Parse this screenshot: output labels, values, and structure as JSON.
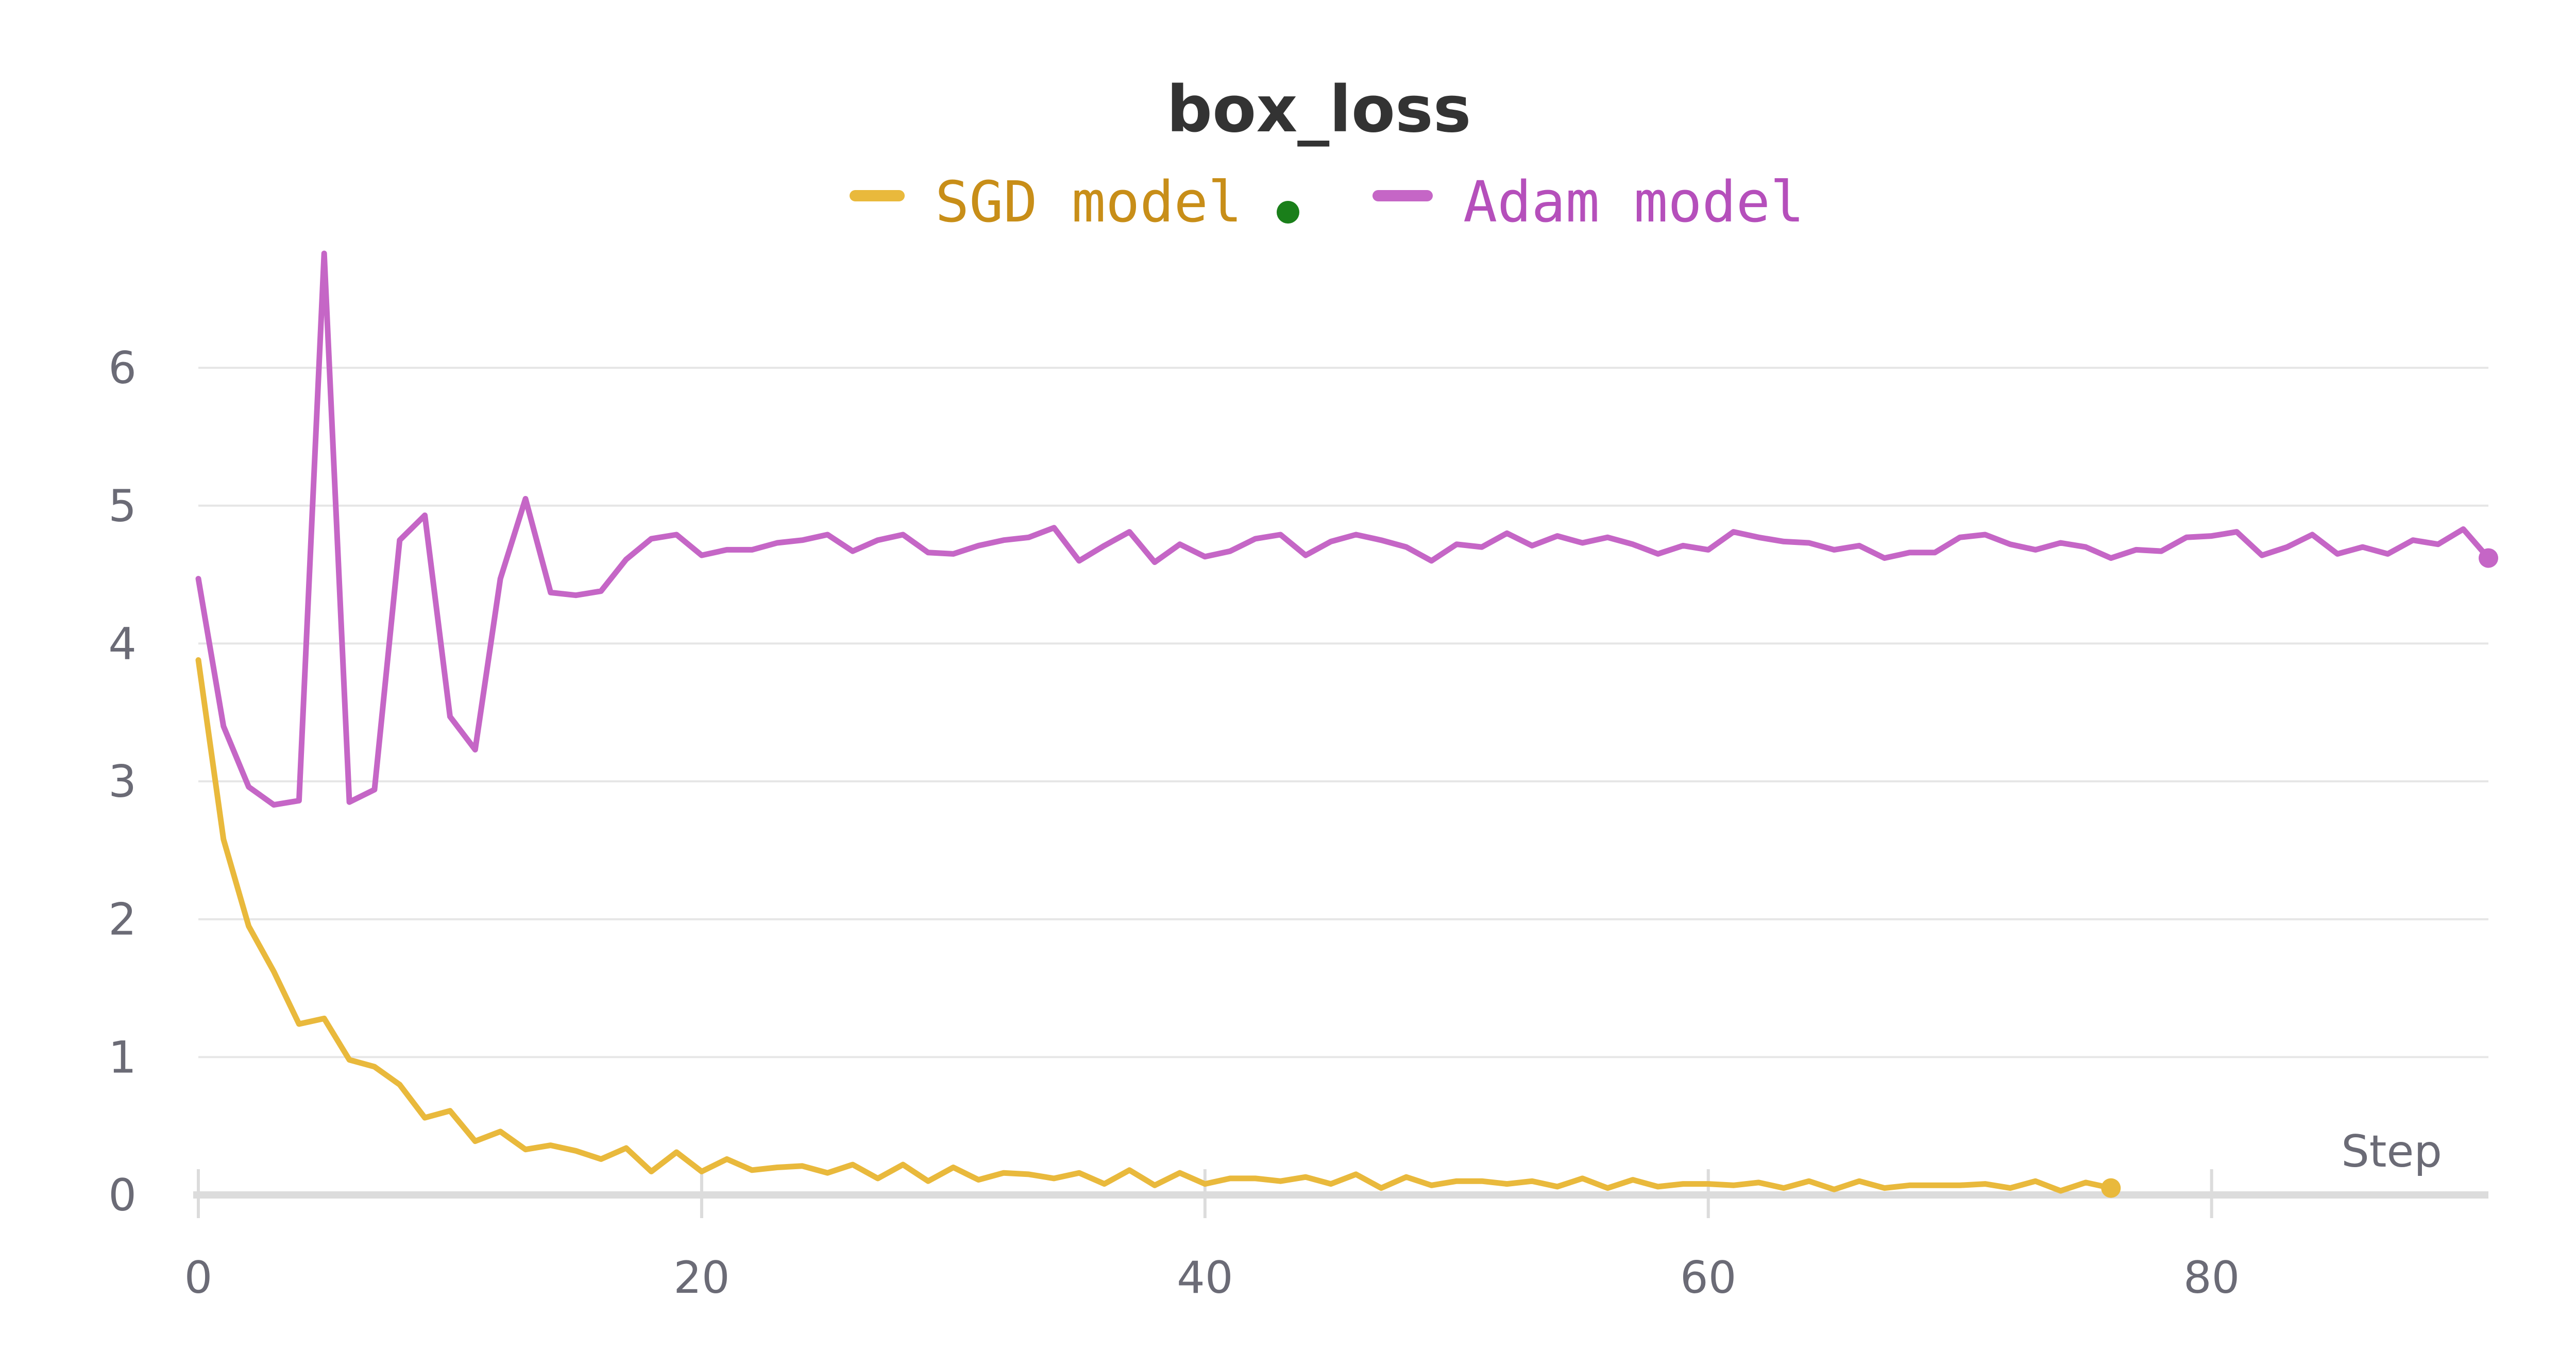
{
  "chart_data": {
    "type": "line",
    "title": "box_loss",
    "xlabel": "Step",
    "ylabel": "",
    "xlim": [
      0,
      91
    ],
    "ylim": [
      0,
      6.8
    ],
    "xticks": [
      0,
      20,
      40,
      60,
      80
    ],
    "yticks": [
      0,
      1,
      2,
      3,
      4,
      5,
      6
    ],
    "grid": true,
    "legend_position": "top-center",
    "series": [
      {
        "name": "SGD model",
        "color": "#e9b93c",
        "text_color": "#c88e18",
        "marker": "green-dot",
        "marker_color": "#1a7f1a",
        "values": [
          3.88,
          2.58,
          1.95,
          1.62,
          1.24,
          1.28,
          0.98,
          0.93,
          0.8,
          0.56,
          0.61,
          0.39,
          0.46,
          0.33,
          0.36,
          0.32,
          0.26,
          0.34,
          0.17,
          0.31,
          0.17,
          0.26,
          0.18,
          0.2,
          0.21,
          0.16,
          0.22,
          0.12,
          0.22,
          0.1,
          0.2,
          0.11,
          0.16,
          0.15,
          0.12,
          0.16,
          0.08,
          0.18,
          0.07,
          0.16,
          0.08,
          0.12,
          0.12,
          0.1,
          0.13,
          0.08,
          0.15,
          0.05,
          0.13,
          0.07,
          0.1,
          0.1,
          0.08,
          0.1,
          0.06,
          0.12,
          0.05,
          0.11,
          0.06,
          0.08,
          0.08,
          0.07,
          0.09,
          0.05,
          0.1,
          0.04,
          0.1,
          0.05,
          0.07,
          0.07,
          0.07,
          0.08,
          0.05,
          0.1,
          0.03,
          0.09,
          0.05
        ]
      },
      {
        "name": "Adam model",
        "color": "#c566c6",
        "text_color": "#b54fbb",
        "values": [
          4.47,
          3.4,
          2.96,
          2.83,
          2.86,
          6.83,
          2.85,
          2.94,
          4.75,
          4.93,
          3.47,
          3.23,
          4.47,
          5.05,
          4.37,
          4.35,
          4.38,
          4.61,
          4.76,
          4.79,
          4.64,
          4.68,
          4.68,
          4.73,
          4.75,
          4.79,
          4.67,
          4.75,
          4.79,
          4.66,
          4.65,
          4.71,
          4.75,
          4.77,
          4.84,
          4.6,
          4.71,
          4.81,
          4.59,
          4.72,
          4.63,
          4.67,
          4.76,
          4.79,
          4.64,
          4.74,
          4.79,
          4.75,
          4.7,
          4.6,
          4.72,
          4.7,
          4.8,
          4.71,
          4.78,
          4.73,
          4.77,
          4.72,
          4.65,
          4.71,
          4.68,
          4.81,
          4.77,
          4.74,
          4.73,
          4.68,
          4.71,
          4.62,
          4.66,
          4.66,
          4.77,
          4.79,
          4.72,
          4.68,
          4.73,
          4.7,
          4.62,
          4.68,
          4.67,
          4.77,
          4.78,
          4.81,
          4.64,
          4.7,
          4.79,
          4.65,
          4.7,
          4.65,
          4.75,
          4.72,
          4.83,
          4.62
        ]
      }
    ]
  }
}
